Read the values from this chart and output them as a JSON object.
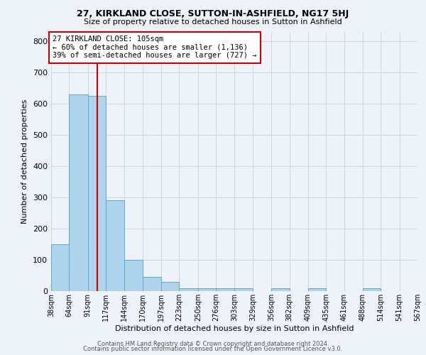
{
  "title": "27, KIRKLAND CLOSE, SUTTON-IN-ASHFIELD, NG17 5HJ",
  "subtitle": "Size of property relative to detached houses in Sutton in Ashfield",
  "xlabel": "Distribution of detached houses by size in Sutton in Ashfield",
  "ylabel": "Number of detached properties",
  "bin_edges": [
    38,
    64,
    91,
    117,
    144,
    170,
    197,
    223,
    250,
    276,
    303,
    329,
    356,
    382,
    409,
    435,
    461,
    488,
    514,
    541,
    567
  ],
  "bar_heights": [
    150,
    630,
    625,
    290,
    100,
    45,
    30,
    10,
    10,
    10,
    10,
    0,
    10,
    0,
    10,
    0,
    0,
    10,
    0,
    0
  ],
  "bar_color": "#aed4eb",
  "bar_edge_color": "#5fa8d3",
  "grid_color": "#d0d8e8",
  "background_color": "#eef3fa",
  "red_line_x": 105,
  "annotation_line1": "27 KIRKLAND CLOSE: 105sqm",
  "annotation_line2": "← 60% of detached houses are smaller (1,136)",
  "annotation_line3": "39% of semi-detached houses are larger (727) →",
  "annotation_box_color": "#ffffff",
  "annotation_box_edge": "#cc0000",
  "footer_line1": "Contains HM Land Registry data © Crown copyright and database right 2024.",
  "footer_line2": "Contains public sector information licensed under the Open Government Licence v3.0.",
  "ylim": [
    0,
    830
  ],
  "yticks": [
    0,
    100,
    200,
    300,
    400,
    500,
    600,
    700,
    800
  ]
}
